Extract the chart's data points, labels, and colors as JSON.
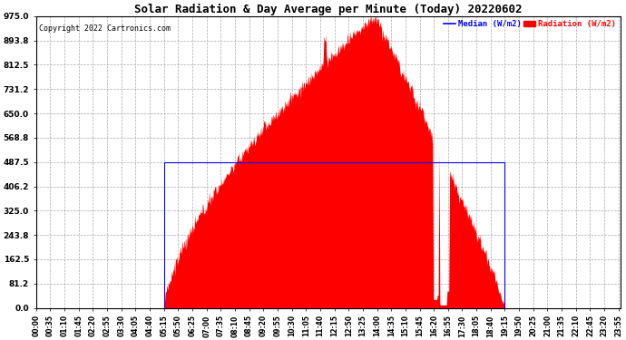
{
  "title": "Solar Radiation & Day Average per Minute (Today) 20220602",
  "copyright": "Copyright 2022 Cartronics.com",
  "legend_median": "Median (W/m2)",
  "legend_radiation": "Radiation (W/m2)",
  "yticks": [
    0.0,
    81.2,
    162.5,
    243.8,
    325.0,
    406.2,
    487.5,
    568.8,
    650.0,
    731.2,
    812.5,
    893.8,
    975.0
  ],
  "ymax": 975.0,
  "ymin": 0.0,
  "total_minutes": 1440,
  "sunrise_minute": 315,
  "sunset_minute": 1155,
  "peak_minute": 835,
  "median_value": 487.5,
  "radiation_color": "#ff0000",
  "median_color": "#0000ff",
  "background_color": "#ffffff",
  "grid_color": "#aaaaaa",
  "title_color": "#000000",
  "copyright_color": "#000000",
  "xtick_labels": [
    "00:00",
    "00:35",
    "01:10",
    "01:45",
    "02:20",
    "02:55",
    "03:30",
    "04:05",
    "04:40",
    "05:15",
    "05:50",
    "06:25",
    "07:00",
    "07:35",
    "08:10",
    "08:45",
    "09:20",
    "09:55",
    "10:30",
    "11:05",
    "11:40",
    "12:15",
    "12:50",
    "13:25",
    "14:00",
    "14:35",
    "15:10",
    "15:45",
    "16:20",
    "16:55",
    "17:30",
    "18:05",
    "18:40",
    "19:15",
    "19:50",
    "20:25",
    "21:00",
    "21:35",
    "22:10",
    "22:45",
    "23:20",
    "23:55"
  ],
  "xtick_minutes": [
    0,
    35,
    70,
    105,
    140,
    175,
    210,
    245,
    280,
    315,
    350,
    385,
    420,
    455,
    490,
    525,
    560,
    595,
    630,
    665,
    700,
    735,
    770,
    805,
    840,
    875,
    910,
    945,
    980,
    1015,
    1050,
    1085,
    1120,
    1155,
    1190,
    1225,
    1260,
    1295,
    1330,
    1365,
    1400,
    1435
  ],
  "figwidth": 6.9,
  "figheight": 3.75,
  "dpi": 100
}
